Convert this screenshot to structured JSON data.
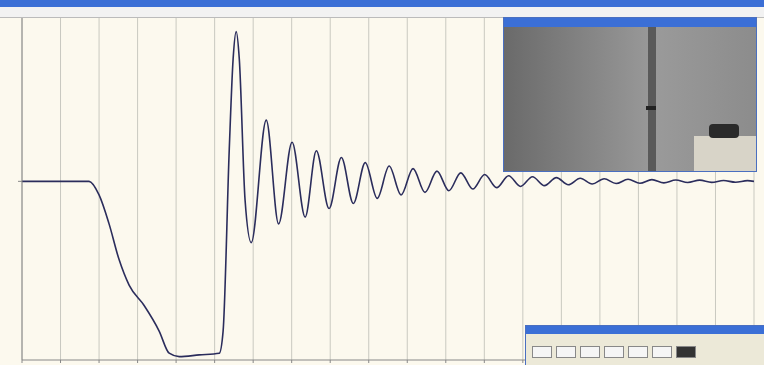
{
  "chart_data": {
    "type": "line",
    "color": "#2b2d5c",
    "grid": true,
    "tick_labels": false,
    "xlim": [
      0,
      19
    ],
    "xticks": [
      0,
      1,
      2,
      3,
      4,
      5,
      6,
      7,
      8,
      9,
      10,
      11,
      12,
      13,
      14,
      15,
      16,
      17,
      18,
      19
    ],
    "ylim": [
      -1.05,
      0.96
    ],
    "yticks": [
      0
    ],
    "x": [
      0,
      1.74,
      2.0,
      2.26,
      2.52,
      2.78,
      3.17,
      3.56,
      3.82,
      4.08,
      4.6,
      5.12,
      5.22,
      5.38,
      5.48,
      5.56,
      5.64,
      5.79,
      5.95,
      6.34,
      6.66,
      7.01,
      7.35,
      7.64,
      7.97,
      8.29,
      8.6,
      8.91,
      9.22,
      9.53,
      9.84,
      10.15,
      10.46,
      10.77,
      11.08,
      11.39,
      11.7,
      12.01,
      12.32,
      12.63,
      12.94,
      13.25,
      13.56,
      13.87,
      14.18,
      14.49,
      14.8,
      15.11,
      15.42,
      15.73,
      16.04,
      16.35,
      16.66,
      16.97,
      17.28,
      17.59,
      17.9,
      18.21,
      18.52,
      18.83,
      19.0
    ],
    "values": [
      0,
      0,
      -0.08,
      -0.25,
      -0.46,
      -0.61,
      -0.73,
      -0.88,
      -1.01,
      -1.03,
      -1.02,
      -1.01,
      -0.88,
      0.19,
      0.72,
      0.88,
      0.72,
      -0.11,
      -0.36,
      0.36,
      -0.25,
      0.23,
      -0.21,
      0.18,
      -0.16,
      0.14,
      -0.13,
      0.11,
      -0.1,
      0.09,
      -0.08,
      0.075,
      -0.065,
      0.06,
      -0.055,
      0.05,
      -0.045,
      0.04,
      -0.037,
      0.033,
      -0.03,
      0.027,
      -0.025,
      0.022,
      -0.02,
      0.018,
      -0.016,
      0.015,
      -0.013,
      0.012,
      -0.011,
      0.01,
      -0.009,
      0.008,
      -0.007,
      0.007,
      -0.006,
      0.005,
      -0.005,
      0.004,
      0.0
    ]
  }
}
